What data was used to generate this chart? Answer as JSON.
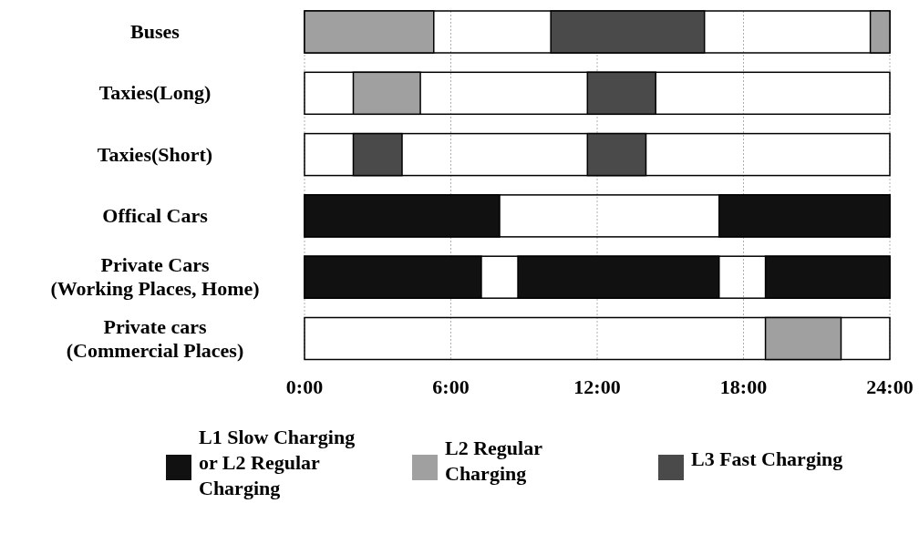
{
  "chart_data": {
    "type": "bar",
    "orientation": "horizontal",
    "categories": [
      "Buses",
      "Taxies(Long)",
      "Taxies(Short)",
      "Offical Cars",
      "Private Cars (Working Places, Home)",
      "Private cars (Commercial Places)"
    ],
    "series": [
      {
        "name": "L1 Slow Charging or L2 Regular Charging",
        "color": "#111111",
        "base": [
          null,
          null,
          null,
          0,
          0,
          null
        ],
        "values": [
          null,
          null,
          null,
          8,
          7.25,
          null
        ]
      },
      {
        "color": "#111111",
        "base": [
          null,
          null,
          null,
          17,
          8.75,
          null
        ],
        "values": [
          null,
          null,
          null,
          7,
          8.25,
          null
        ]
      },
      {
        "color": "#111111",
        "base": [
          null,
          null,
          null,
          null,
          18.9,
          null
        ],
        "values": [
          null,
          null,
          null,
          null,
          5.1,
          null
        ]
      },
      {
        "name": "L2 Regular Charging",
        "color": "#a0a0a0",
        "base": [
          0,
          2,
          null,
          null,
          null,
          18.9
        ],
        "values": [
          5.3,
          2.75,
          null,
          null,
          null,
          3.1
        ]
      },
      {
        "color": "#a0a0a0",
        "base": [
          23.2,
          null,
          null,
          null,
          null,
          null
        ],
        "values": [
          0.8,
          null,
          null,
          null,
          null,
          null
        ]
      },
      {
        "name": "L3 Fast Charging",
        "color": "#4a4a4a",
        "base": [
          10.1,
          11.6,
          2,
          null,
          null,
          null
        ],
        "values": [
          6.3,
          2.8,
          2,
          null,
          null,
          null
        ]
      },
      {
        "color": "#4a4a4a",
        "base": [
          null,
          null,
          11.6,
          null,
          null,
          null
        ],
        "values": [
          null,
          null,
          2.4,
          null,
          null,
          null
        ]
      }
    ],
    "xlim": [
      0,
      24
    ],
    "xticks": [
      {
        "value": 0,
        "label": "0:00"
      },
      {
        "value": 6,
        "label": "6:00"
      },
      {
        "value": 12,
        "label": "12:00"
      },
      {
        "value": 18,
        "label": "18:00"
      },
      {
        "value": 24,
        "label": "24:00"
      }
    ],
    "grid": "x",
    "legend": "bottom"
  }
}
